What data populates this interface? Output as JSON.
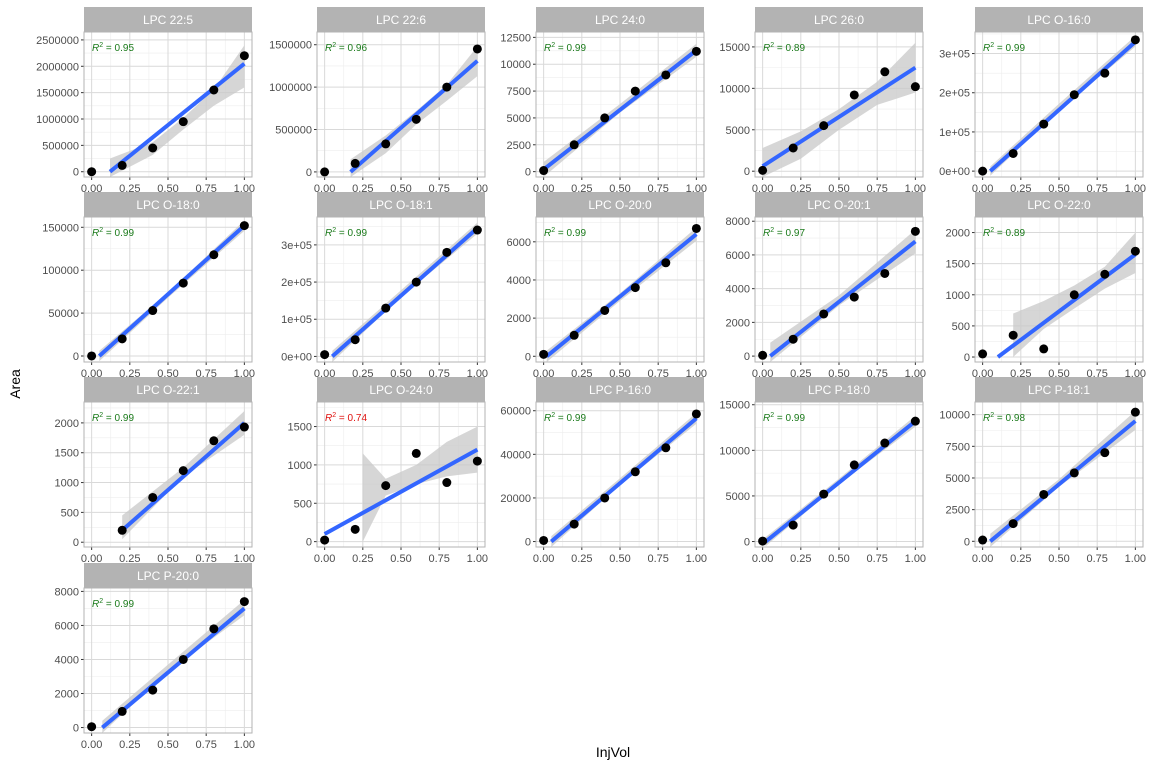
{
  "figure": {
    "xlabel": "InjVol",
    "ylabel": "Area"
  },
  "colors": {
    "strip_bg": "#b3b3b3",
    "strip_text": "#ffffff",
    "grid_major": "#d9d9d9",
    "grid_minor": "#ededed",
    "panel_border": "#b3b3b3",
    "fit_line": "#3366ff",
    "ribbon": "#c8c8c8",
    "points": "#000000",
    "r2_good": "#1a7a1a",
    "r2_bad": "#e0120f",
    "tick_text": "#4d4d4d"
  },
  "chart_data": [
    {
      "type": "scatter",
      "title": "LPC 22:5",
      "r2_label": "= 0.95",
      "r2_status": "good",
      "x": [
        0,
        0.2,
        0.4,
        0.6,
        0.8,
        1.0
      ],
      "y": [
        0,
        120000,
        450000,
        950000,
        1550000,
        2200000
      ],
      "fit": {
        "x": [
          0.12,
          1.0
        ],
        "y": [
          0,
          2050000
        ]
      },
      "ribbon": {
        "x": [
          0.12,
          0.4,
          0.6,
          0.8,
          1.0
        ],
        "lower": [
          -250000,
          320000,
          800000,
          1250000,
          1600000
        ],
        "upper": [
          250000,
          560000,
          1020000,
          1560000,
          2400000
        ]
      },
      "ylim": [
        -100000,
        2650000
      ],
      "yticks": [
        0,
        500000,
        1000000,
        1500000,
        2000000,
        2500000
      ],
      "yticklabels": [
        "0",
        "500000",
        "1000000",
        "1500000",
        "2000000",
        "2500000"
      ],
      "xticks": [
        0,
        0.25,
        0.5,
        0.75,
        1.0
      ],
      "xticklabels": [
        "0.00",
        "0.25",
        "0.50",
        "0.75",
        "1.00"
      ]
    },
    {
      "type": "scatter",
      "title": "LPC 22:6",
      "r2_label": "= 0.96",
      "r2_status": "good",
      "x": [
        0,
        0.2,
        0.4,
        0.6,
        0.8,
        1.0
      ],
      "y": [
        0,
        100000,
        330000,
        620000,
        1000000,
        1450000
      ],
      "fit": {
        "x": [
          0.17,
          1.0
        ],
        "y": [
          0,
          1310000
        ]
      },
      "ribbon": {
        "x": [
          0.17,
          0.4,
          0.6,
          0.8,
          1.0
        ],
        "lower": [
          -150000,
          220000,
          560000,
          840000,
          1130000
        ],
        "upper": [
          150000,
          430000,
          720000,
          1030000,
          1480000
        ]
      },
      "ylim": [
        -60000,
        1650000
      ],
      "yticks": [
        0,
        500000,
        1000000,
        1500000
      ],
      "yticklabels": [
        "0",
        "500000",
        "1000000",
        "1500000"
      ],
      "xticks": [
        0,
        0.25,
        0.5,
        0.75,
        1.0
      ],
      "xticklabels": [
        "0.00",
        "0.25",
        "0.50",
        "0.75",
        "1.00"
      ]
    },
    {
      "type": "scatter",
      "title": "LPC 24:0",
      "r2_label": "= 0.99",
      "r2_status": "good",
      "x": [
        0,
        0.2,
        0.4,
        0.6,
        0.8,
        1.0
      ],
      "y": [
        100,
        2500,
        5000,
        7500,
        9000,
        11200
      ],
      "fit": {
        "x": [
          0,
          1.0
        ],
        "y": [
          200,
          11300
        ]
      },
      "ribbon": {
        "x": [
          0,
          0.5,
          1.0
        ],
        "lower": [
          -500,
          5500,
          10700
        ],
        "upper": [
          900,
          6300,
          11900
        ]
      },
      "ylim": [
        -500,
        13000
      ],
      "yticks": [
        0,
        2500,
        5000,
        7500,
        10000,
        12500
      ],
      "yticklabels": [
        "0",
        "2500",
        "5000",
        "7500",
        "10000",
        "12500"
      ],
      "xticks": [
        0,
        0.25,
        0.5,
        0.75,
        1.0
      ],
      "xticklabels": [
        "0.00",
        "0.25",
        "0.50",
        "0.75",
        "1.00"
      ]
    },
    {
      "type": "scatter",
      "title": "LPC 26:0",
      "r2_label": "= 0.89",
      "r2_status": "good",
      "x": [
        0,
        0.2,
        0.4,
        0.6,
        0.8,
        1.0
      ],
      "y": [
        100,
        2800,
        5500,
        9200,
        12000,
        10200
      ],
      "fit": {
        "x": [
          0,
          1.0
        ],
        "y": [
          600,
          12500
        ]
      },
      "ribbon": {
        "x": [
          0,
          0.25,
          0.5,
          0.75,
          1.0
        ],
        "lower": [
          -1500,
          1500,
          5000,
          8000,
          9500
        ],
        "upper": [
          2800,
          4800,
          7500,
          10800,
          15500
        ]
      },
      "ylim": [
        -700,
        16800
      ],
      "yticks": [
        0,
        5000,
        10000,
        15000
      ],
      "yticklabels": [
        "0",
        "5000",
        "10000",
        "15000"
      ],
      "xticks": [
        0,
        0.25,
        0.5,
        0.75,
        1.0
      ],
      "xticklabels": [
        "0.00",
        "0.25",
        "0.50",
        "0.75",
        "1.00"
      ]
    },
    {
      "type": "scatter",
      "title": "LPC O-16:0",
      "r2_label": "= 0.99",
      "r2_status": "good",
      "x": [
        0,
        0.2,
        0.4,
        0.6,
        0.8,
        1.0
      ],
      "y": [
        0,
        45000,
        120000,
        195000,
        250000,
        335000
      ],
      "fit": {
        "x": [
          0.05,
          1.0
        ],
        "y": [
          0,
          330000
        ]
      },
      "ribbon": {
        "x": [
          0.05,
          0.5,
          1.0
        ],
        "lower": [
          -12000,
          155000,
          318000
        ],
        "upper": [
          12000,
          172000,
          345000
        ]
      },
      "ylim": [
        -15000,
        355000
      ],
      "yticks": [
        0,
        100000,
        200000,
        300000
      ],
      "yticklabels": [
        "0e+00",
        "1e+05",
        "2e+05",
        "3e+05"
      ],
      "xticks": [
        0,
        0.25,
        0.5,
        0.75,
        1.0
      ],
      "xticklabels": [
        "0.00",
        "0.25",
        "0.50",
        "0.75",
        "1.00"
      ]
    },
    {
      "type": "scatter",
      "title": "LPC O-18:0",
      "r2_label": "= 0.99",
      "r2_status": "good",
      "x": [
        0,
        0.2,
        0.4,
        0.6,
        0.8,
        1.0
      ],
      "y": [
        0,
        20000,
        53000,
        85000,
        118000,
        152000
      ],
      "fit": {
        "x": [
          0.05,
          1.0
        ],
        "y": [
          0,
          152000
        ]
      },
      "ribbon": {
        "x": [
          0.05,
          0.5,
          1.0
        ],
        "lower": [
          -6000,
          68000,
          146000
        ],
        "upper": [
          6000,
          74000,
          158000
        ]
      },
      "ylim": [
        -7000,
        162000
      ],
      "yticks": [
        0,
        50000,
        100000,
        150000
      ],
      "yticklabels": [
        "0",
        "50000",
        "100000",
        "150000"
      ],
      "xticks": [
        0,
        0.25,
        0.5,
        0.75,
        1.0
      ],
      "xticklabels": [
        "0.00",
        "0.25",
        "0.50",
        "0.75",
        "1.00"
      ]
    },
    {
      "type": "scatter",
      "title": "LPC O-18:1",
      "r2_label": "= 0.99",
      "r2_status": "good",
      "x": [
        0,
        0.2,
        0.4,
        0.6,
        0.8,
        1.0
      ],
      "y": [
        5000,
        45000,
        130000,
        200000,
        280000,
        340000
      ],
      "fit": {
        "x": [
          0.05,
          1.0
        ],
        "y": [
          0,
          345000
        ]
      },
      "ribbon": {
        "x": [
          0.05,
          0.5,
          1.0
        ],
        "lower": [
          -15000,
          160000,
          330000
        ],
        "upper": [
          15000,
          178000,
          360000
        ]
      },
      "ylim": [
        -15000,
        375000
      ],
      "yticks": [
        0,
        100000,
        200000,
        300000
      ],
      "yticklabels": [
        "0e+00",
        "1e+05",
        "2e+05",
        "3e+05"
      ],
      "xticks": [
        0,
        0.25,
        0.5,
        0.75,
        1.0
      ],
      "xticklabels": [
        "0.00",
        "0.25",
        "0.50",
        "0.75",
        "1.00"
      ]
    },
    {
      "type": "scatter",
      "title": "LPC O-20:0",
      "r2_label": "= 0.99",
      "r2_status": "good",
      "x": [
        0,
        0.2,
        0.4,
        0.6,
        0.8,
        1.0
      ],
      "y": [
        100,
        1100,
        2400,
        3600,
        4900,
        6700
      ],
      "fit": {
        "x": [
          0.02,
          1.0
        ],
        "y": [
          0,
          6400
        ]
      },
      "ribbon": {
        "x": [
          0.02,
          0.5,
          1.0
        ],
        "lower": [
          -300,
          2900,
          6050
        ],
        "upper": [
          300,
          3300,
          6750
        ]
      },
      "ylim": [
        -300,
        7300
      ],
      "yticks": [
        0,
        2000,
        4000,
        6000
      ],
      "yticklabels": [
        "0",
        "2000",
        "4000",
        "6000"
      ],
      "xticks": [
        0,
        0.25,
        0.5,
        0.75,
        1.0
      ],
      "xticklabels": [
        "0.00",
        "0.25",
        "0.50",
        "0.75",
        "1.00"
      ]
    },
    {
      "type": "scatter",
      "title": "LPC O-20:1",
      "r2_label": "= 0.97",
      "r2_status": "good",
      "x": [
        0,
        0.2,
        0.4,
        0.6,
        0.8,
        1.0
      ],
      "y": [
        50,
        1000,
        2500,
        3500,
        4900,
        7400
      ],
      "fit": {
        "x": [
          0.05,
          1.0
        ],
        "y": [
          0,
          6800
        ]
      },
      "ribbon": {
        "x": [
          0.05,
          0.5,
          1.0
        ],
        "lower": [
          -800,
          3000,
          6100
        ],
        "upper": [
          800,
          3600,
          7500
        ]
      },
      "ylim": [
        -350,
        8250
      ],
      "yticks": [
        0,
        2000,
        4000,
        6000,
        8000
      ],
      "yticklabels": [
        "0",
        "2000",
        "4000",
        "6000",
        "8000"
      ],
      "xticks": [
        0,
        0.25,
        0.5,
        0.75,
        1.0
      ],
      "xticklabels": [
        "0.00",
        "0.25",
        "0.50",
        "0.75",
        "1.00"
      ]
    },
    {
      "type": "scatter",
      "title": "LPC O-22:0",
      "r2_label": "= 0.89",
      "r2_status": "good",
      "x": [
        0,
        0.2,
        0.4,
        0.6,
        0.8,
        1.0
      ],
      "y": [
        50,
        350,
        130,
        1000,
        1330,
        1700
      ],
      "fit": {
        "x": [
          0.1,
          1.0
        ],
        "y": [
          0,
          1650
        ]
      },
      "ribbon": {
        "x": [
          0.2,
          0.4,
          0.6,
          0.8,
          1.0
        ],
        "lower": [
          0,
          450,
          780,
          1100,
          1350
        ],
        "upper": [
          700,
          900,
          1150,
          1450,
          2000
        ]
      },
      "ylim": [
        -80,
        2250
      ],
      "yticks": [
        0,
        500,
        1000,
        1500,
        2000
      ],
      "yticklabels": [
        "0",
        "500",
        "1000",
        "1500",
        "2000"
      ],
      "xticks": [
        0,
        0.25,
        0.5,
        0.75,
        1.0
      ],
      "xticklabels": [
        "0.00",
        "0.25",
        "0.50",
        "0.75",
        "1.00"
      ]
    },
    {
      "type": "scatter",
      "title": "LPC O-22:1",
      "r2_label": "= 0.99",
      "r2_status": "good",
      "x": [
        0.2,
        0.4,
        0.6,
        0.8,
        1.0
      ],
      "y": [
        200,
        750,
        1200,
        1700,
        1930
      ],
      "fit": {
        "x": [
          0.2,
          1.0
        ],
        "y": [
          200,
          2000
        ]
      },
      "ribbon": {
        "x": [
          0.2,
          0.6,
          1.0
        ],
        "lower": [
          50,
          1100,
          1800
        ],
        "upper": [
          450,
          1250,
          2200
        ]
      },
      "ylim": [
        -80,
        2350
      ],
      "yticks": [
        0,
        500,
        1000,
        1500,
        2000
      ],
      "yticklabels": [
        "0",
        "500",
        "1000",
        "1500",
        "2000"
      ],
      "xticks": [
        0,
        0.25,
        0.5,
        0.75,
        1.0
      ],
      "xticklabels": [
        "0.00",
        "0.25",
        "0.50",
        "0.75",
        "1.00"
      ]
    },
    {
      "type": "scatter",
      "title": "LPC O-24:0",
      "r2_label": "= 0.74",
      "r2_status": "bad",
      "x": [
        0,
        0.2,
        0.4,
        0.6,
        0.8,
        1.0
      ],
      "y": [
        20,
        160,
        730,
        1150,
        770,
        1050
      ],
      "fit": {
        "x": [
          0,
          1.0
        ],
        "y": [
          100,
          1200
        ]
      },
      "ribbon": {
        "x": [
          0.25,
          0.4,
          0.6,
          0.8,
          1.0
        ],
        "lower": [
          0,
          600,
          750,
          850,
          900
        ],
        "upper": [
          1150,
          820,
          1000,
          1300,
          1500
        ]
      },
      "ylim": [
        -70,
        1820
      ],
      "yticks": [
        0,
        500,
        1000,
        1500
      ],
      "yticklabels": [
        "0",
        "500",
        "1000",
        "1500"
      ],
      "xticks": [
        0,
        0.25,
        0.5,
        0.75,
        1.0
      ],
      "xticklabels": [
        "0.00",
        "0.25",
        "0.50",
        "0.75",
        "1.00"
      ]
    },
    {
      "type": "scatter",
      "title": "LPC P-16:0",
      "r2_label": "= 0.99",
      "r2_status": "good",
      "x": [
        0,
        0.2,
        0.4,
        0.6,
        0.8,
        1.0
      ],
      "y": [
        500,
        8000,
        20000,
        32000,
        43000,
        58500
      ],
      "fit": {
        "x": [
          0.05,
          1.0
        ],
        "y": [
          0,
          56500
        ]
      },
      "ribbon": {
        "x": [
          0.05,
          0.5,
          1.0
        ],
        "lower": [
          -2500,
          26000,
          54000
        ],
        "upper": [
          2500,
          29000,
          59000
        ]
      },
      "ylim": [
        -2500,
        64000
      ],
      "yticks": [
        0,
        20000,
        40000,
        60000
      ],
      "yticklabels": [
        "0",
        "20000",
        "40000",
        "60000"
      ],
      "xticks": [
        0,
        0.25,
        0.5,
        0.75,
        1.0
      ],
      "xticklabels": [
        "0.00",
        "0.25",
        "0.50",
        "0.75",
        "1.00"
      ]
    },
    {
      "type": "scatter",
      "title": "LPC P-18:0",
      "r2_label": "= 0.99",
      "r2_status": "good",
      "x": [
        0,
        0.2,
        0.4,
        0.6,
        0.8,
        1.0
      ],
      "y": [
        50,
        1800,
        5200,
        8400,
        10800,
        13200
      ],
      "fit": {
        "x": [
          0.02,
          1.0
        ],
        "y": [
          0,
          13200
        ]
      },
      "ribbon": {
        "x": [
          0.02,
          0.5,
          1.0
        ],
        "lower": [
          -500,
          6300,
          12600
        ],
        "upper": [
          500,
          6900,
          13800
        ]
      },
      "ylim": [
        -600,
        15300
      ],
      "yticks": [
        0,
        5000,
        10000,
        15000
      ],
      "yticklabels": [
        "0",
        "5000",
        "10000",
        "15000"
      ],
      "xticks": [
        0,
        0.25,
        0.5,
        0.75,
        1.0
      ],
      "xticklabels": [
        "0.00",
        "0.25",
        "0.50",
        "0.75",
        "1.00"
      ]
    },
    {
      "type": "scatter",
      "title": "LPC P-18:1",
      "r2_label": "= 0.98",
      "r2_status": "good",
      "x": [
        0,
        0.2,
        0.4,
        0.6,
        0.8,
        1.0
      ],
      "y": [
        100,
        1400,
        3700,
        5400,
        7000,
        10200
      ],
      "fit": {
        "x": [
          0.05,
          1.0
        ],
        "y": [
          0,
          9500
        ]
      },
      "ribbon": {
        "x": [
          0.05,
          0.5,
          1.0
        ],
        "lower": [
          -600,
          4300,
          8800
        ],
        "upper": [
          600,
          4900,
          10300
        ]
      },
      "ylim": [
        -450,
        11000
      ],
      "yticks": [
        0,
        2500,
        5000,
        7500,
        10000
      ],
      "yticklabels": [
        "0",
        "2500",
        "5000",
        "7500",
        "10000"
      ],
      "xticks": [
        0,
        0.25,
        0.5,
        0.75,
        1.0
      ],
      "xticklabels": [
        "0.00",
        "0.25",
        "0.50",
        "0.75",
        "1.00"
      ]
    },
    {
      "type": "scatter",
      "title": "LPC P-20:0",
      "r2_label": "= 0.99",
      "r2_status": "good",
      "x": [
        0,
        0.2,
        0.4,
        0.6,
        0.8,
        1.0
      ],
      "y": [
        50,
        950,
        2200,
        4000,
        5800,
        7400
      ],
      "fit": {
        "x": [
          0.07,
          1.0
        ],
        "y": [
          0,
          7000
        ]
      },
      "ribbon": {
        "x": [
          0.07,
          0.5,
          1.0
        ],
        "lower": [
          -400,
          3300,
          6600
        ],
        "upper": [
          400,
          3700,
          7500
        ]
      },
      "ylim": [
        -320,
        8200
      ],
      "yticks": [
        0,
        2000,
        4000,
        6000,
        8000
      ],
      "yticklabels": [
        "0",
        "2000",
        "4000",
        "6000",
        "8000"
      ],
      "xticks": [
        0,
        0.25,
        0.5,
        0.75,
        1.0
      ],
      "xticklabels": [
        "0.00",
        "0.25",
        "0.50",
        "0.75",
        "1.00"
      ]
    }
  ]
}
